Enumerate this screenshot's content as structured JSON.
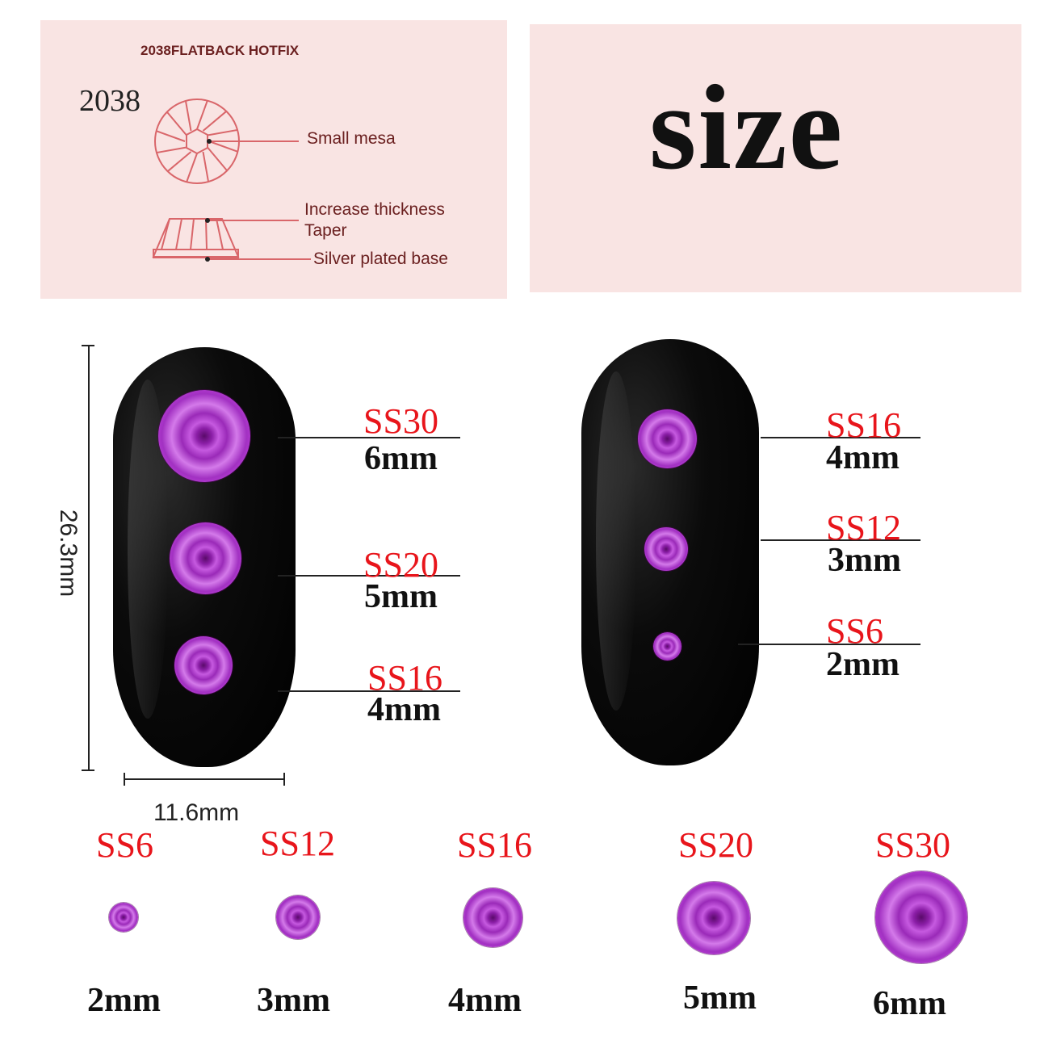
{
  "diagram": {
    "heading": "2038FLATBACK HOTFIX",
    "model": "2038",
    "labels": [
      "Small mesa",
      "Increase thickness",
      "Taper",
      "Silver plated base"
    ],
    "line_color": "#d9666a"
  },
  "title": "size",
  "dimensions": {
    "height": "26.3mm",
    "width": "11.6mm"
  },
  "left_nail": [
    {
      "code": "SS30",
      "size": "6mm"
    },
    {
      "code": "SS20",
      "size": "5mm"
    },
    {
      "code": "SS16",
      "size": "4mm"
    }
  ],
  "right_nail": [
    {
      "code": "SS16",
      "size": "4mm"
    },
    {
      "code": "SS12",
      "size": "3mm"
    },
    {
      "code": "SS6",
      "size": "2mm"
    }
  ],
  "row": [
    {
      "code": "SS6",
      "size": "2mm"
    },
    {
      "code": "SS12",
      "size": "3mm"
    },
    {
      "code": "SS16",
      "size": "4mm"
    },
    {
      "code": "SS20",
      "size": "5mm"
    },
    {
      "code": "SS30",
      "size": "6mm"
    }
  ],
  "colors": {
    "code_red": "#e8151b",
    "gem_purple": "#b23ad0",
    "panel_pink": "#f9e4e3"
  }
}
